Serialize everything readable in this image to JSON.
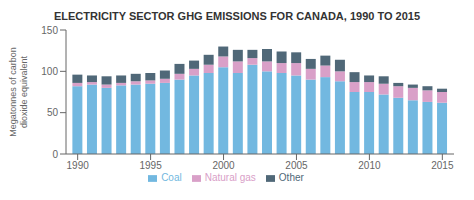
{
  "chart_data": {
    "type": "bar",
    "title": "ELECTRICITY SECTOR GHG EMISSIONS FOR CANADA, 1990 TO 2015",
    "y_label": "Megatonnes of carbon\ndioxide equivalent",
    "x": [
      1990,
      1991,
      1992,
      1993,
      1994,
      1995,
      1996,
      1997,
      1998,
      1999,
      2000,
      2001,
      2002,
      2003,
      2004,
      2005,
      2006,
      2007,
      2008,
      2009,
      2010,
      2011,
      2012,
      2013,
      2014,
      2015
    ],
    "series": [
      {
        "name": "Coal",
        "color": "#72b8e0",
        "values": [
          82,
          84,
          80,
          83,
          84,
          85,
          86,
          90,
          95,
          98,
          105,
          98,
          108,
          100,
          98,
          95,
          90,
          93,
          88,
          75,
          75,
          72,
          68,
          65,
          63,
          62
        ]
      },
      {
        "name": "Natural gas",
        "color": "#d9a0c8",
        "values": [
          4,
          3,
          4,
          3,
          4,
          4,
          5,
          7,
          8,
          10,
          13,
          14,
          8,
          12,
          12,
          15,
          13,
          14,
          12,
          12,
          12,
          13,
          14,
          15,
          14,
          13
        ]
      },
      {
        "name": "Other",
        "color": "#506878",
        "values": [
          10,
          8,
          10,
          9,
          9,
          9,
          10,
          12,
          10,
          12,
          12,
          14,
          10,
          15,
          14,
          13,
          12,
          12,
          14,
          12,
          8,
          9,
          4,
          4,
          5,
          4
        ]
      }
    ],
    "xlim": [
      1989.2,
      2015.8
    ],
    "xticks": [
      1990,
      1995,
      2000,
      2005,
      2010,
      2015
    ],
    "ylim": [
      0,
      150
    ],
    "yticks": [
      0,
      50,
      100,
      150
    ],
    "stacked": true,
    "grid": false,
    "legend": "bottom"
  }
}
